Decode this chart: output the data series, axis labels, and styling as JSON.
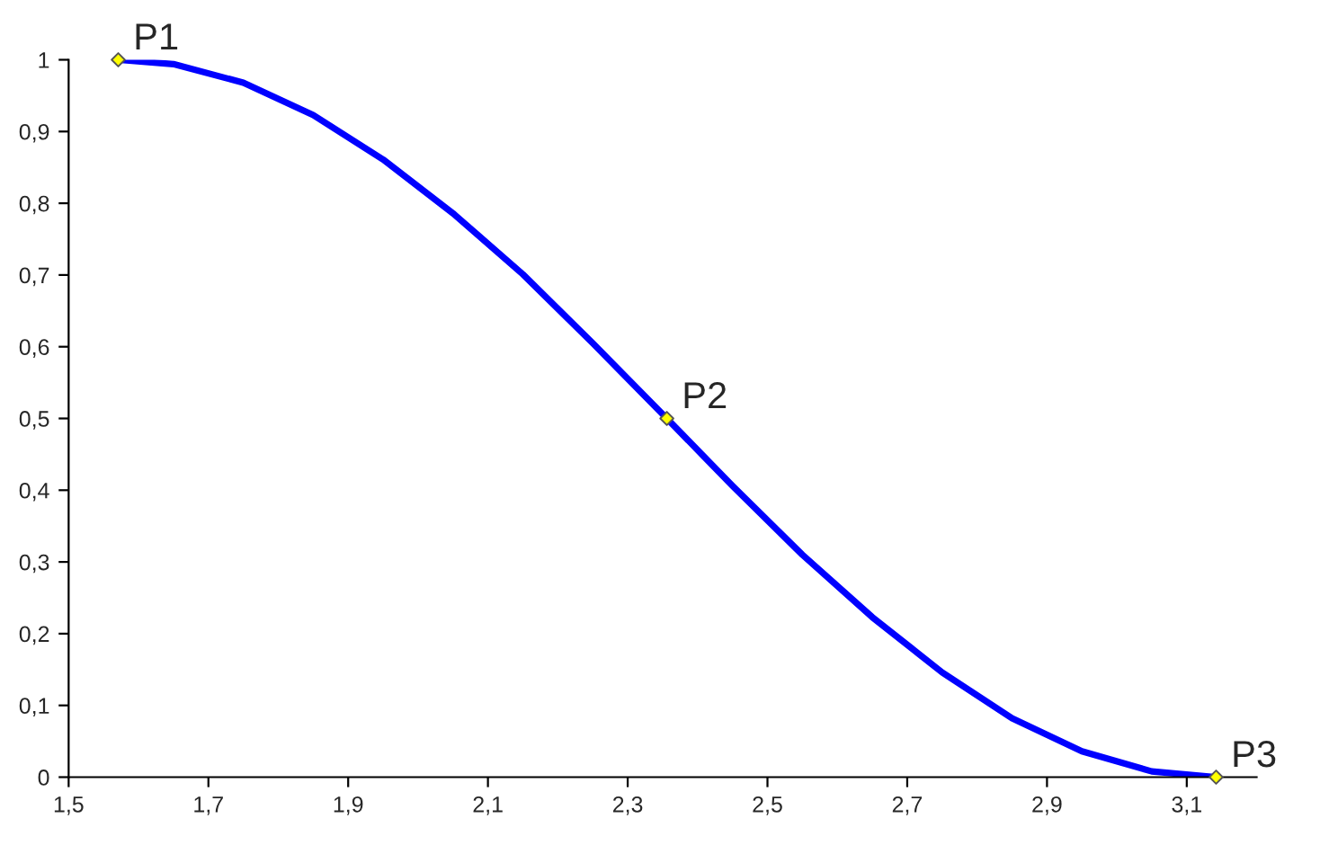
{
  "chart_data": {
    "type": "line",
    "xlim": [
      1.5,
      3.2
    ],
    "ylim": [
      0,
      1
    ],
    "xticks": [
      {
        "value": 1.5,
        "label": "1,5"
      },
      {
        "value": 1.7,
        "label": "1,7"
      },
      {
        "value": 1.9,
        "label": "1,9"
      },
      {
        "value": 2.1,
        "label": "2,1"
      },
      {
        "value": 2.3,
        "label": "2,3"
      },
      {
        "value": 2.5,
        "label": "2,5"
      },
      {
        "value": 2.7,
        "label": "2,7"
      },
      {
        "value": 2.9,
        "label": "2,9"
      },
      {
        "value": 3.1,
        "label": "3,1"
      }
    ],
    "yticks": [
      0,
      {
        "value": 0.1,
        "label": "0,1"
      },
      {
        "value": 0.2,
        "label": "0,2"
      },
      {
        "value": 0.3,
        "label": "0,3"
      },
      {
        "value": 0.4,
        "label": "0,4"
      },
      {
        "value": 0.5,
        "label": "0,5"
      },
      {
        "value": 0.6,
        "label": "0,6"
      },
      {
        "value": 0.7,
        "label": "0,7"
      },
      {
        "value": 0.8,
        "label": "0,8"
      },
      {
        "value": 0.9,
        "label": "0,9"
      },
      1
    ],
    "grid": false,
    "legend": false,
    "series": [
      {
        "color": "#0000ff",
        "marker": "none",
        "x": [
          1.571,
          1.65,
          1.75,
          1.85,
          1.95,
          2.05,
          2.15,
          2.25,
          2.356,
          2.45,
          2.55,
          2.65,
          2.75,
          2.85,
          2.95,
          3.05,
          3.142
        ],
        "values": [
          1.0,
          0.994,
          0.968,
          0.923,
          0.861,
          0.786,
          0.701,
          0.605,
          0.5,
          0.406,
          0.31,
          0.223,
          0.146,
          0.082,
          0.036,
          0.008,
          0.0
        ]
      },
      {
        "type": "scatter",
        "color": "#ffff00",
        "marker": "diamond",
        "x": [
          1.571,
          2.356,
          3.142
        ],
        "values": [
          1.0,
          0.5,
          0.0
        ]
      }
    ],
    "annotations": [
      {
        "text": "P1",
        "x": 1.571,
        "y": 1.0
      },
      {
        "text": "P2",
        "x": 2.356,
        "y": 0.5
      },
      {
        "text": "P3",
        "x": 3.142,
        "y": 0.0
      }
    ]
  }
}
